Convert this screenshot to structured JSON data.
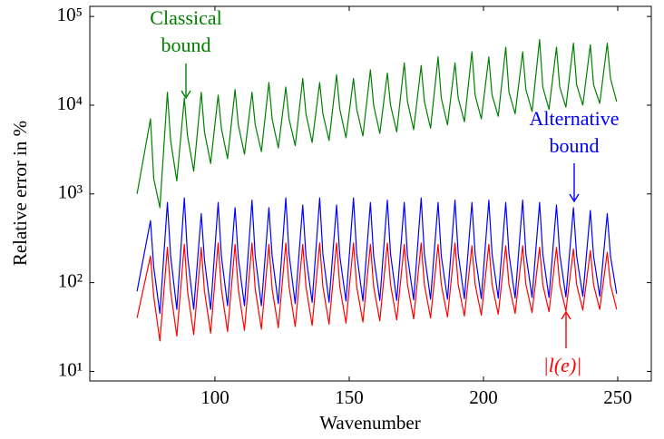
{
  "chart_data": {
    "type": "line",
    "xlabel": "Wavenumber",
    "ylabel": "Relative error in %",
    "log_y": true,
    "xlim": [
      53.4,
      262.5
    ],
    "xticks": [
      100,
      150,
      200,
      250
    ],
    "ylim": [
      7.8,
      130000
    ],
    "yticks": [
      {
        "value": 10,
        "label": "10¹"
      },
      {
        "value": 100,
        "label": "10²"
      },
      {
        "value": 1000,
        "label": "10³"
      },
      {
        "value": 10000,
        "label": "10⁴"
      },
      {
        "value": 100000,
        "label": "10⁵"
      }
    ],
    "annotations": [
      {
        "lines": [
          "Classical",
          "bound"
        ],
        "color": "#008000"
      },
      {
        "lines": [
          "Alternative",
          "bound"
        ],
        "color": "#0000ff"
      },
      {
        "lines": [
          "|l(e)|"
        ],
        "color": "#ff0000"
      }
    ],
    "x": [
      71,
      76,
      77.2,
      79.5,
      82.3,
      83.5,
      85.8,
      88.6,
      89.8,
      92.1,
      94.9,
      96.1,
      98.4,
      101.2,
      102.4,
      104.7,
      107.5,
      108.7,
      111,
      113.8,
      115,
      117.3,
      120.1,
      121.3,
      123.6,
      126.4,
      127.6,
      129.9,
      132.7,
      133.9,
      136.2,
      139,
      140.2,
      142.5,
      145.3,
      146.5,
      148.8,
      151.6,
      152.8,
      155.1,
      157.9,
      159.1,
      161.4,
      164.2,
      165.4,
      167.7,
      170.5,
      171.7,
      174,
      176.8,
      178,
      180.3,
      183.1,
      184.3,
      186.6,
      189.4,
      190.6,
      192.9,
      195.7,
      196.9,
      199.2,
      202,
      203.2,
      205.5,
      208.3,
      209.5,
      211.8,
      214.6,
      215.8,
      218.1,
      220.9,
      222.1,
      224.4,
      227.2,
      228.4,
      230.7,
      233.5,
      234.7,
      237,
      239.8,
      241,
      243.3,
      246.1,
      247.3,
      249.6
    ],
    "series": [
      {
        "name": "Classical bound",
        "color": "#008000",
        "values": [
          1000,
          7000,
          1500,
          700,
          14000,
          4000,
          1400,
          12000,
          4500,
          1800,
          14000,
          5000,
          2200,
          13000,
          5500,
          2500,
          15000,
          6000,
          2800,
          14000,
          6000,
          3000,
          18000,
          7000,
          3300,
          16000,
          7000,
          3500,
          20000,
          8000,
          3800,
          18000,
          8000,
          4000,
          22000,
          9000,
          4300,
          20000,
          9000,
          4500,
          25000,
          10000,
          4800,
          23000,
          10000,
          5000,
          30000,
          11000,
          5300,
          28000,
          11000,
          5500,
          35000,
          12000,
          6000,
          30000,
          12000,
          6500,
          40000,
          13000,
          7000,
          35000,
          13000,
          7500,
          45000,
          14000,
          8000,
          40000,
          15000,
          8500,
          55000,
          16000,
          9000,
          45000,
          16000,
          9500,
          50000,
          17000,
          10000,
          48000,
          17000,
          10500,
          50000,
          20000,
          11000
        ]
      },
      {
        "name": "Alternative bound",
        "color": "#0000ff",
        "values": [
          80,
          500,
          150,
          45,
          800,
          200,
          50,
          900,
          200,
          50,
          600,
          180,
          50,
          800,
          200,
          55,
          700,
          190,
          55,
          850,
          200,
          55,
          700,
          200,
          58,
          900,
          210,
          58,
          750,
          200,
          60,
          900,
          210,
          60,
          750,
          200,
          62,
          900,
          210,
          62,
          800,
          200,
          63,
          850,
          210,
          63,
          800,
          200,
          64,
          900,
          210,
          65,
          800,
          200,
          65,
          850,
          210,
          66,
          800,
          210,
          66,
          850,
          210,
          67,
          800,
          210,
          67,
          850,
          210,
          68,
          800,
          210,
          68,
          750,
          210,
          69,
          700,
          200,
          70,
          650,
          200,
          70,
          600,
          200,
          75
        ]
      },
      {
        "name": "|l(e)|",
        "color": "#ff0000",
        "values": [
          40,
          200,
          70,
          22,
          250,
          80,
          25,
          270,
          80,
          26,
          250,
          80,
          27,
          280,
          85,
          28,
          270,
          85,
          29,
          280,
          85,
          30,
          270,
          85,
          31,
          280,
          90,
          32,
          270,
          90,
          33,
          280,
          90,
          34,
          280,
          90,
          35,
          280,
          90,
          36,
          270,
          90,
          37,
          280,
          95,
          38,
          270,
          95,
          39,
          280,
          95,
          40,
          270,
          95,
          41,
          280,
          95,
          42,
          260,
          95,
          43,
          270,
          95,
          44,
          260,
          95,
          45,
          260,
          95,
          46,
          250,
          95,
          47,
          250,
          95,
          48,
          240,
          95,
          49,
          230,
          95,
          50,
          220,
          95,
          50
        ]
      }
    ]
  }
}
